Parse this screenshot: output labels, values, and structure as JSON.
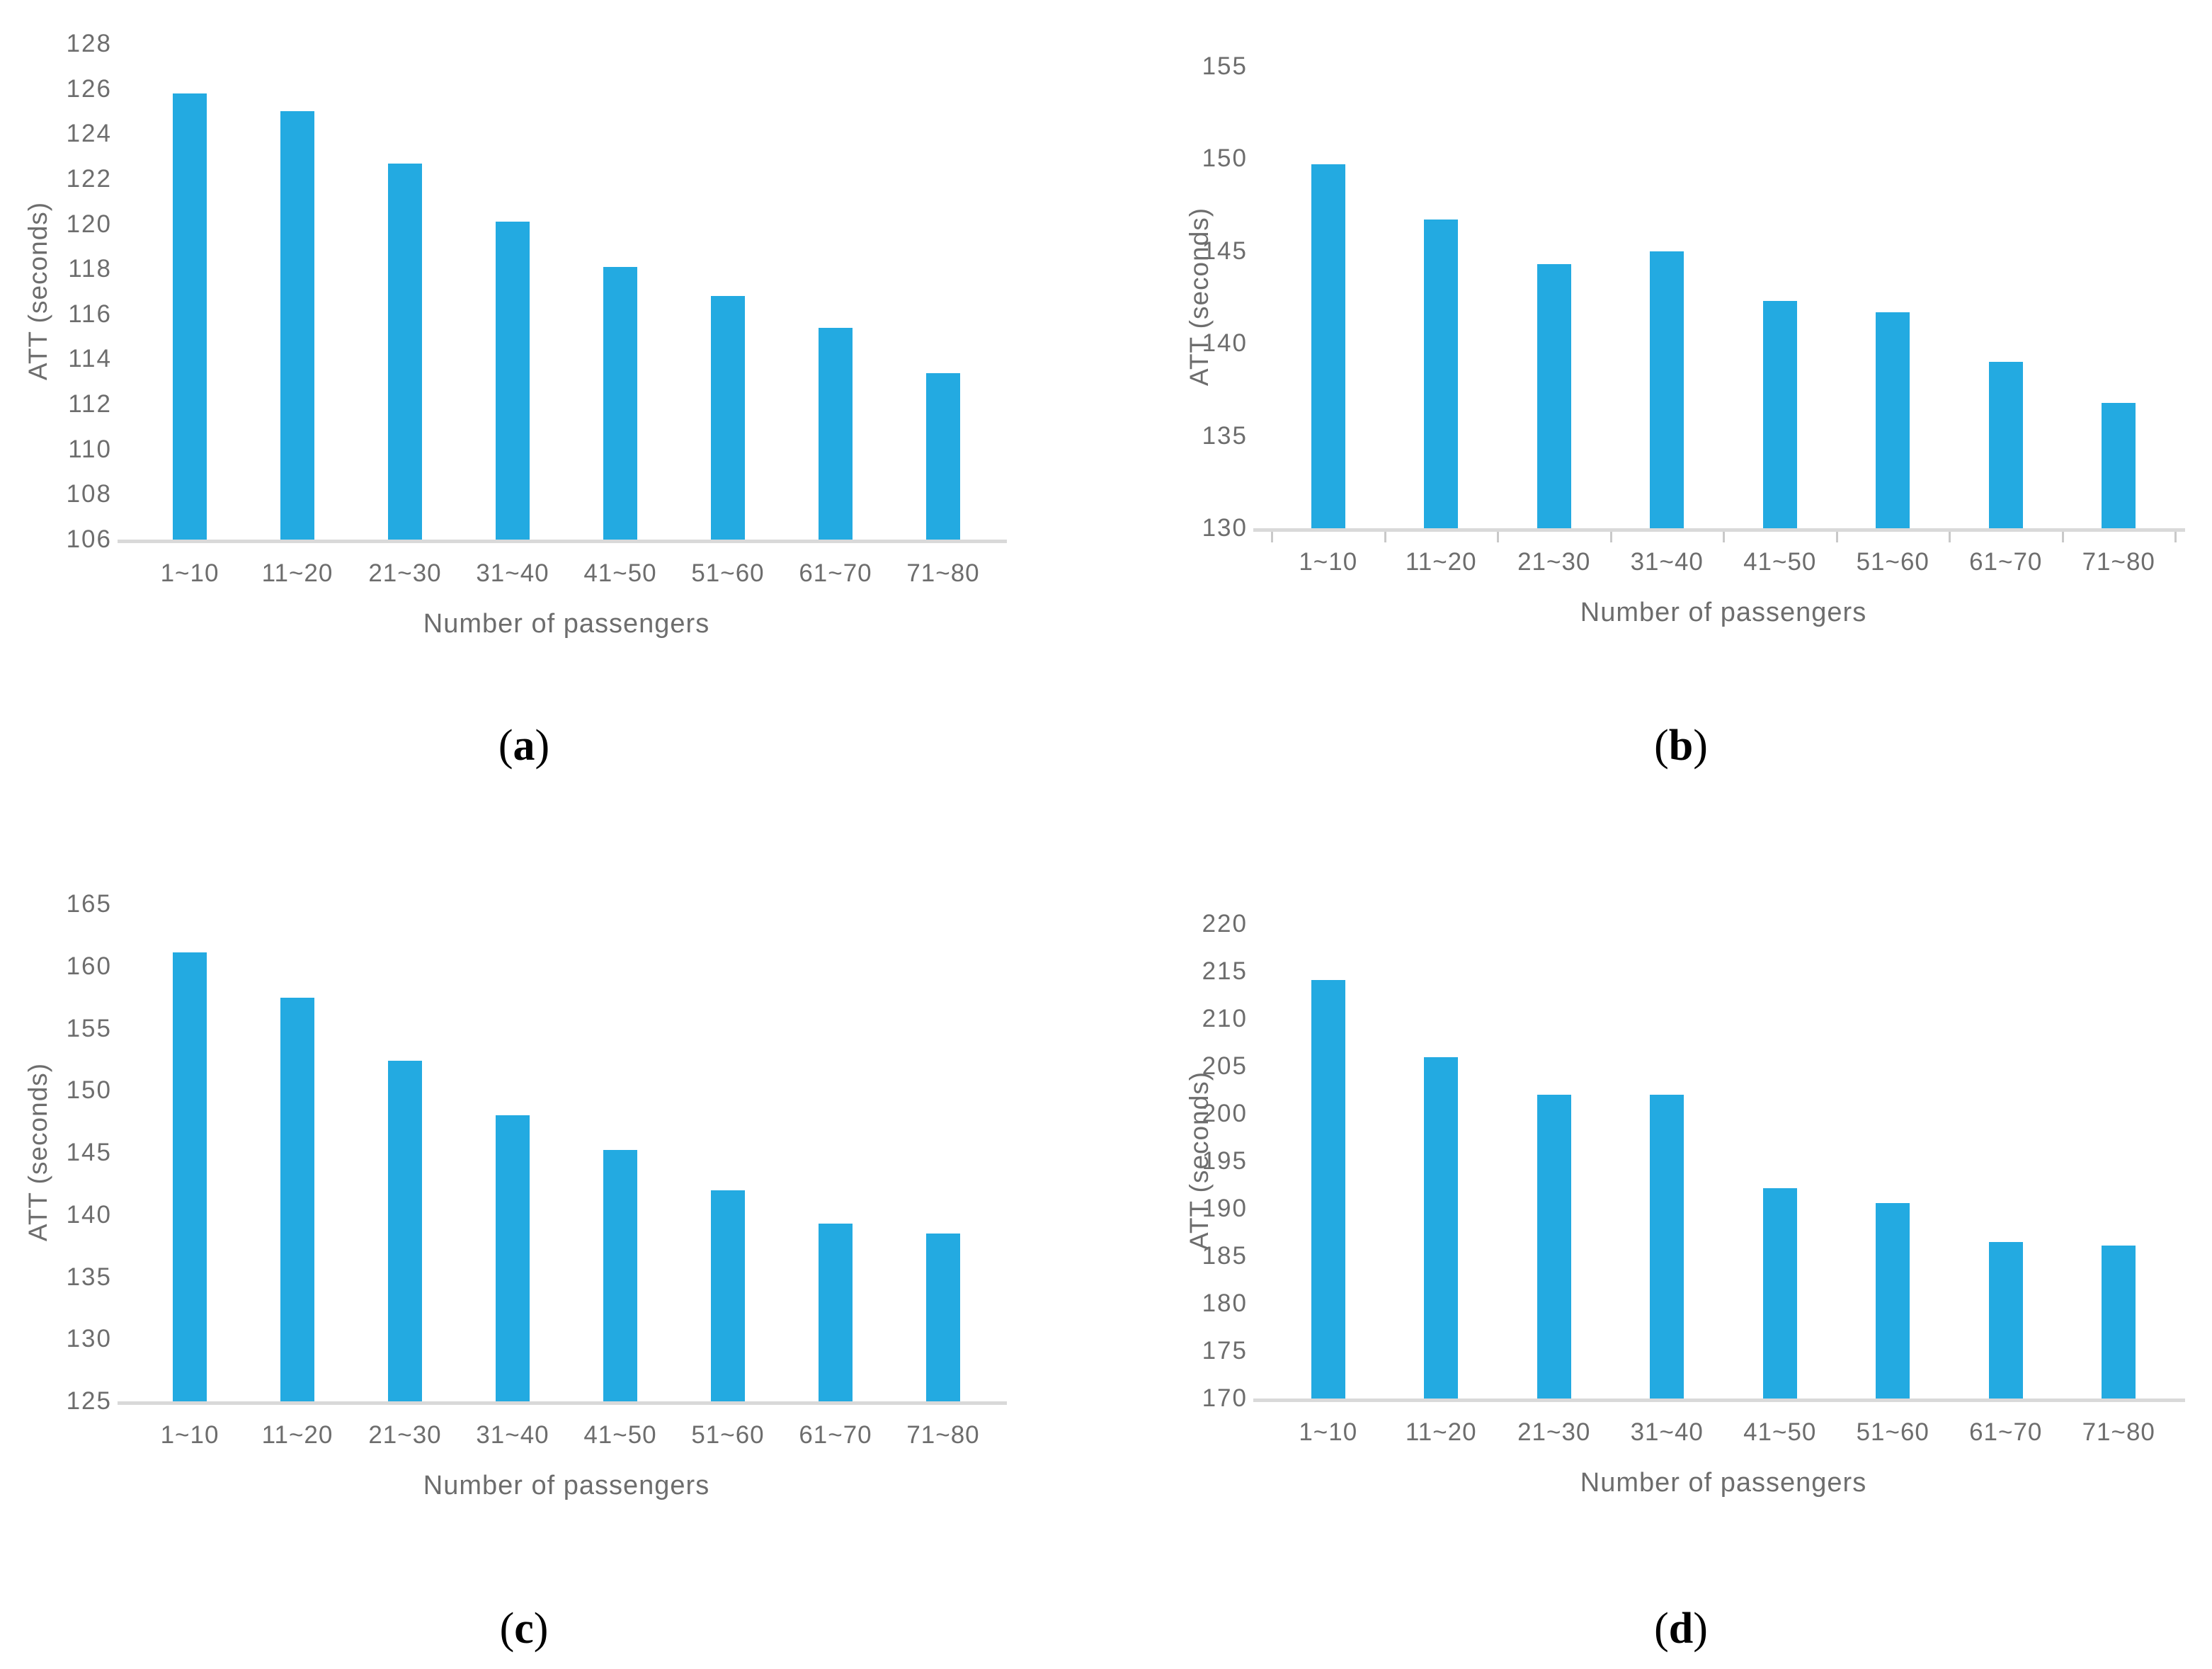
{
  "figure": {
    "description": "Four bar charts of average travel time (ATT) versus number of passengers, panels (a)-(d)"
  },
  "colors": {
    "bar": "#23aae1",
    "axis_line": "#d9d9d9",
    "tick_mark": "#c9c9c9",
    "tick_text": "#6d6d6d",
    "caption_text": "#000000"
  },
  "chart_data": [
    {
      "type": "bar",
      "panel": "a",
      "caption": "(a)",
      "caption_letter": "a",
      "xlabel": "Number of passengers",
      "ylabel": "ATT (seconds)",
      "categories": [
        "1~10",
        "11~20",
        "21~30",
        "31~40",
        "41~50",
        "51~60",
        "61~70",
        "71~80"
      ],
      "values": [
        125.8,
        125.0,
        122.7,
        120.1,
        118.1,
        116.8,
        115.4,
        113.4
      ],
      "ylim": [
        106,
        128
      ],
      "ytick_step": 2,
      "ytick_labels": [
        "106",
        "108",
        "110",
        "112",
        "114",
        "116",
        "118",
        "120",
        "122",
        "124",
        "126",
        "128"
      ],
      "x_axis_tick_marks": false,
      "grid": false,
      "legend": null
    },
    {
      "type": "bar",
      "panel": "b",
      "caption": "(b)",
      "caption_letter": "b",
      "xlabel": "Number of passengers",
      "ylabel": "ATT (seconds)",
      "categories": [
        "1~10",
        "11~20",
        "21~30",
        "31~40",
        "41~50",
        "51~60",
        "61~70",
        "71~80"
      ],
      "values": [
        149.7,
        146.7,
        144.3,
        145.0,
        142.3,
        141.7,
        139.0,
        136.8
      ],
      "ylim": [
        130,
        155
      ],
      "ytick_step": 5,
      "ytick_labels": [
        "130",
        "135",
        "140",
        "145",
        "150",
        "155"
      ],
      "x_axis_tick_marks": true,
      "grid": false,
      "legend": null
    },
    {
      "type": "bar",
      "panel": "c",
      "caption": "(c)",
      "caption_letter": "c",
      "xlabel": "Number of passengers",
      "ylabel": "ATT (seconds)",
      "categories": [
        "1~10",
        "11~20",
        "21~30",
        "31~40",
        "41~50",
        "51~60",
        "61~70",
        "71~80"
      ],
      "values": [
        161.1,
        157.5,
        152.4,
        148.0,
        145.2,
        142.0,
        139.3,
        138.5
      ],
      "ylim": [
        125,
        165
      ],
      "ytick_step": 5,
      "ytick_labels": [
        "125",
        "130",
        "135",
        "140",
        "145",
        "150",
        "155",
        "160",
        "165"
      ],
      "x_axis_tick_marks": false,
      "grid": false,
      "legend": null
    },
    {
      "type": "bar",
      "panel": "d",
      "caption": "(d)",
      "caption_letter": "d",
      "xlabel": "Number of passengers",
      "ylabel": "ATT (seconds)",
      "categories": [
        "1~10",
        "11~20",
        "21~30",
        "31~40",
        "41~50",
        "51~60",
        "61~70",
        "71~80"
      ],
      "values": [
        214.1,
        206.0,
        202.0,
        202.0,
        192.2,
        190.6,
        186.5,
        186.1
      ],
      "ylim": [
        170,
        220
      ],
      "ytick_step": 5,
      "ytick_labels": [
        "170",
        "175",
        "180",
        "185",
        "190",
        "195",
        "200",
        "205",
        "210",
        "215",
        "220"
      ],
      "x_axis_tick_marks": false,
      "grid": false,
      "legend": null
    }
  ]
}
